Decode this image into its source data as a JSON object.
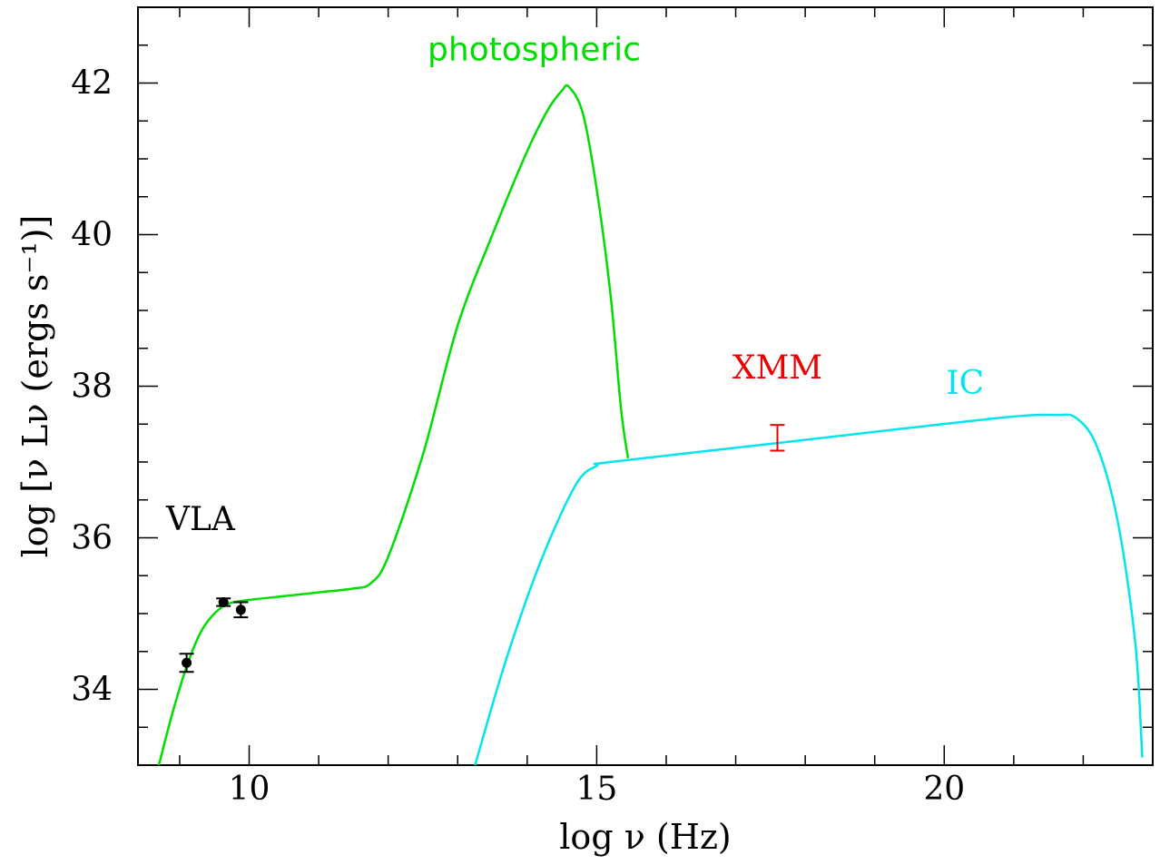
{
  "chart_data": {
    "type": "line",
    "xlabel": "log ν (Hz)",
    "ylabel": "log [ν Lν (ergs s⁻¹)]",
    "xlim": [
      8.4,
      23.0
    ],
    "ylim": [
      33.0,
      43.0
    ],
    "x_ticks": [
      "10",
      "15",
      "20"
    ],
    "y_ticks": [
      "34",
      "36",
      "38",
      "40",
      "42"
    ],
    "grid": false,
    "series": [
      {
        "name": "photospheric",
        "color": "#00dd00",
        "x": [
          8.7,
          8.9,
          9.1,
          9.3,
          9.5,
          9.7,
          10.0,
          10.5,
          11.0,
          11.5,
          11.75,
          12.0,
          12.5,
          13.0,
          13.5,
          14.0,
          14.3,
          14.5,
          14.6,
          14.8,
          15.0,
          15.2,
          15.35,
          15.45
        ],
        "y": [
          33.0,
          33.7,
          34.3,
          34.75,
          35.0,
          35.13,
          35.18,
          35.23,
          35.28,
          35.33,
          35.4,
          35.75,
          37.1,
          38.8,
          40.0,
          41.1,
          41.65,
          41.9,
          41.95,
          41.6,
          40.6,
          39.2,
          37.7,
          37.05
        ]
      },
      {
        "name": "IC",
        "color": "#00e5ee",
        "x": [
          13.25,
          13.7,
          14.2,
          14.7,
          15.0,
          15.2,
          17.6,
          19.5,
          21.0,
          21.6,
          21.9,
          22.2,
          22.5,
          22.75,
          22.85
        ],
        "y": [
          33.0,
          34.4,
          35.7,
          36.7,
          36.95,
          37.0,
          37.25,
          37.45,
          37.6,
          37.62,
          37.58,
          37.2,
          36.2,
          34.6,
          33.1
        ]
      }
    ],
    "points": [
      {
        "name": "VLA",
        "x": 9.1,
        "y": 34.35,
        "err": 0.12
      },
      {
        "name": "VLA",
        "x": 9.63,
        "y": 35.15,
        "err": 0.05
      },
      {
        "name": "VLA",
        "x": 9.88,
        "y": 35.05,
        "err": 0.1
      }
    ],
    "xmm": {
      "x": 17.6,
      "y": 37.32,
      "err": 0.17
    },
    "annotations": [
      {
        "text": "photospheric",
        "color": "#00dd00",
        "x": 14.1,
        "y": 42.3
      },
      {
        "text": "XMM",
        "color": "#ee0000",
        "x": 17.6,
        "y": 38.1
      },
      {
        "text": "IC",
        "color": "#00e5ee",
        "x": 20.3,
        "y": 37.9
      },
      {
        "text": "VLA",
        "color": "#000000",
        "x": 9.3,
        "y": 36.1
      }
    ]
  }
}
